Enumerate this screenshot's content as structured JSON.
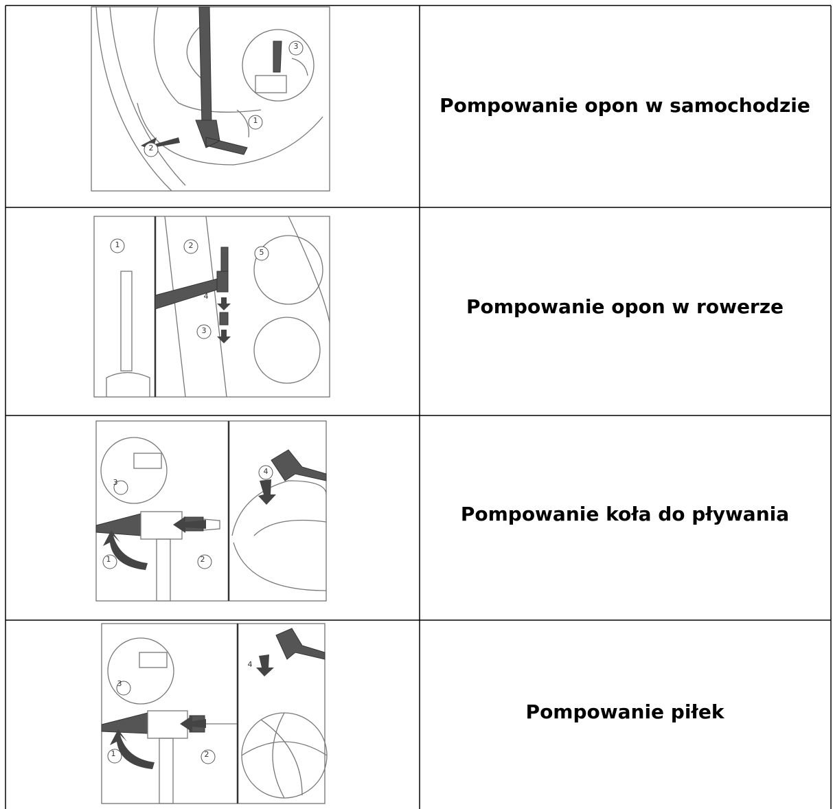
{
  "table": {
    "rows": [
      {
        "illustration": {
          "callouts": [
            "3",
            "1",
            "2"
          ]
        },
        "label": "Pompowanie opon w samochodzie"
      },
      {
        "illustration": {
          "callouts": [
            "1",
            "2",
            "5",
            "4",
            "3"
          ]
        },
        "label": "Pompowanie opon w rowerze"
      },
      {
        "illustration": {
          "callouts": [
            "4",
            "3",
            "1",
            "2"
          ]
        },
        "label": "Pompowanie koła do pływania"
      },
      {
        "illustration": {
          "callouts": [
            "4",
            "3",
            "1",
            "2"
          ]
        },
        "label": "Pompowanie piłek"
      }
    ]
  }
}
